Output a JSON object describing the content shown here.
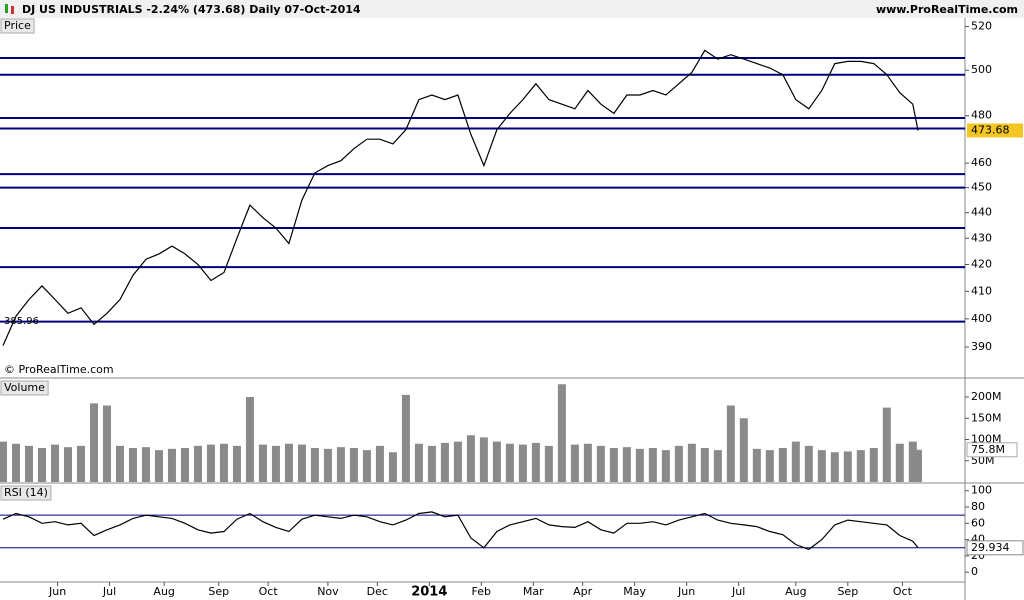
{
  "header": {
    "title": "DJ US INDUSTRIALS  -2.24% (473.68)  Daily  07-Oct-2014",
    "site": "www.ProRealTime.com"
  },
  "chart_data": [
    {
      "type": "line",
      "title": "Price",
      "watermark": "© ProRealTime.com",
      "start_label": "385.96",
      "log": true,
      "color": "#000000",
      "hline_color": "#000080",
      "xlim": [
        0,
        352
      ],
      "xticks": [
        {
          "value": 21,
          "label": "Jun"
        },
        {
          "value": 41,
          "label": "Jul"
        },
        {
          "value": 62,
          "label": "Aug"
        },
        {
          "value": 83,
          "label": "Sep"
        },
        {
          "value": 102,
          "label": "Oct"
        },
        {
          "value": 125,
          "label": "Nov"
        },
        {
          "value": 144,
          "label": "Dec"
        },
        {
          "value": 164,
          "label": "2014",
          "bold": true
        },
        {
          "value": 184,
          "label": "Feb"
        },
        {
          "value": 204,
          "label": "Mar"
        },
        {
          "value": 223,
          "label": "Apr"
        },
        {
          "value": 243,
          "label": "May"
        },
        {
          "value": 263,
          "label": "Jun"
        },
        {
          "value": 283,
          "label": "Jul"
        },
        {
          "value": 305,
          "label": "Aug"
        },
        {
          "value": 325,
          "label": "Sep"
        },
        {
          "value": 346,
          "label": "Oct"
        }
      ],
      "ylim": [
        380,
        524
      ],
      "yticks": [
        390,
        400,
        410,
        420,
        430,
        440,
        450,
        460,
        480,
        500,
        520
      ],
      "hlines": [
        505.5,
        498,
        479,
        474.5,
        455.5,
        450,
        434,
        419,
        399
      ],
      "x": [
        0,
        5,
        10,
        15,
        20,
        25,
        30,
        35,
        40,
        45,
        50,
        55,
        60,
        65,
        70,
        75,
        80,
        85,
        90,
        95,
        100,
        105,
        110,
        115,
        120,
        125,
        130,
        135,
        140,
        145,
        150,
        155,
        160,
        165,
        170,
        175,
        180,
        185,
        190,
        195,
        200,
        205,
        210,
        215,
        220,
        225,
        230,
        235,
        240,
        245,
        250,
        255,
        260,
        265,
        270,
        275,
        280,
        285,
        290,
        295,
        300,
        305,
        310,
        315,
        320,
        325,
        330,
        335,
        340,
        345,
        350,
        352
      ],
      "values": [
        390.5,
        401,
        407,
        412,
        407,
        402,
        404,
        398,
        402,
        407,
        416,
        422,
        424,
        427,
        424,
        420,
        414,
        417,
        430,
        443,
        438,
        434,
        428,
        445,
        456,
        459,
        461,
        466,
        470,
        470,
        468,
        474,
        487,
        489,
        487,
        489,
        472,
        459,
        474,
        481,
        487,
        494,
        487,
        485,
        483,
        491,
        485,
        481,
        489,
        489,
        491,
        489,
        494,
        499,
        509,
        505,
        507,
        505,
        503,
        501,
        498,
        487,
        483,
        491,
        503,
        504,
        504,
        503,
        498,
        490,
        485,
        473.68
      ]
    },
    {
      "type": "bar",
      "title": "Volume",
      "color": "#8a8a8a",
      "ylim": [
        0,
        240
      ],
      "yticks": [
        {
          "value": 50,
          "label": "50M"
        },
        {
          "value": 100,
          "label": "100M"
        },
        {
          "value": 150,
          "label": "150M"
        },
        {
          "value": 200,
          "label": "200M"
        }
      ],
      "current": {
        "value": 75.8,
        "label": "75.8M"
      },
      "values": [
        95,
        90,
        85,
        80,
        88,
        82,
        85,
        185,
        180,
        85,
        80,
        82,
        75,
        78,
        80,
        85,
        88,
        90,
        85,
        200,
        88,
        85,
        90,
        88,
        80,
        78,
        82,
        80,
        75,
        85,
        70,
        205,
        90,
        85,
        92,
        95,
        110,
        105,
        95,
        90,
        88,
        92,
        85,
        230,
        88,
        90,
        85,
        80,
        82,
        78,
        80,
        75,
        85,
        90,
        80,
        75,
        180,
        150,
        78,
        75,
        80,
        95,
        85,
        75,
        70,
        72,
        75,
        80,
        175,
        90,
        95,
        75.8
      ]
    },
    {
      "type": "line",
      "title": "RSI (14)",
      "color": "#000000",
      "hline_color": "#000080",
      "ylim": [
        -12,
        107
      ],
      "yticks": [
        0,
        20,
        40,
        60,
        80,
        100
      ],
      "hlines": [
        70,
        30
      ],
      "values": [
        65,
        72,
        68,
        60,
        62,
        58,
        60,
        45,
        52,
        58,
        66,
        70,
        68,
        66,
        60,
        52,
        48,
        50,
        65,
        72,
        62,
        55,
        50,
        65,
        70,
        68,
        66,
        70,
        68,
        62,
        58,
        64,
        72,
        74,
        68,
        70,
        42,
        30,
        50,
        58,
        62,
        66,
        58,
        56,
        55,
        62,
        52,
        48,
        60,
        60,
        62,
        58,
        64,
        68,
        72,
        64,
        60,
        58,
        56,
        50,
        46,
        34,
        28,
        40,
        58,
        64,
        62,
        60,
        58,
        45,
        38,
        29.934
      ]
    }
  ]
}
